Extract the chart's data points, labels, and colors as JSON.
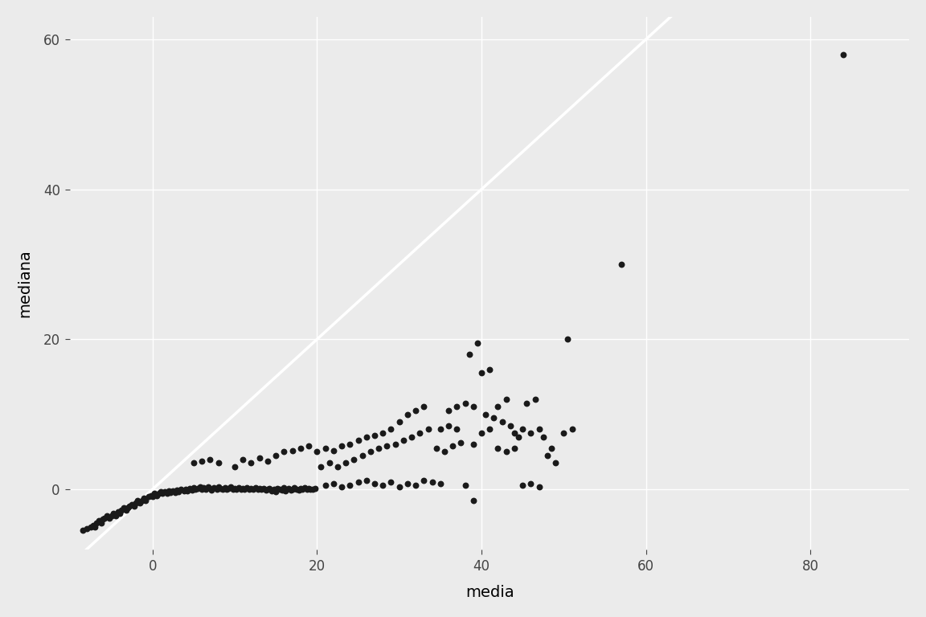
{
  "title": "",
  "xlabel": "media",
  "ylabel": "mediana",
  "background_color": "#EBEBEB",
  "grid_color": "#FFFFFF",
  "line_color": "#FFFFFF",
  "point_color": "#1A1A1A",
  "xlim": [
    -10,
    92
  ],
  "ylim": [
    -8,
    63
  ],
  "xticks": [
    0,
    20,
    40,
    60,
    80
  ],
  "yticks": [
    0,
    20,
    40,
    60
  ],
  "points": [
    [
      -8.5,
      -5.5
    ],
    [
      -8.0,
      -5.2
    ],
    [
      -7.5,
      -5.0
    ],
    [
      -7.2,
      -4.8
    ],
    [
      -7.0,
      -5.0
    ],
    [
      -6.8,
      -4.5
    ],
    [
      -6.5,
      -4.2
    ],
    [
      -6.2,
      -4.5
    ],
    [
      -6.0,
      -4.0
    ],
    [
      -5.8,
      -3.8
    ],
    [
      -5.5,
      -3.5
    ],
    [
      -5.2,
      -3.8
    ],
    [
      -5.0,
      -3.5
    ],
    [
      -4.8,
      -3.2
    ],
    [
      -4.5,
      -3.5
    ],
    [
      -4.2,
      -3.0
    ],
    [
      -4.0,
      -3.2
    ],
    [
      -3.8,
      -2.8
    ],
    [
      -3.5,
      -2.5
    ],
    [
      -3.2,
      -2.8
    ],
    [
      -3.0,
      -2.5
    ],
    [
      -2.8,
      -2.2
    ],
    [
      -2.5,
      -2.0
    ],
    [
      -2.2,
      -2.2
    ],
    [
      -2.0,
      -1.8
    ],
    [
      -1.8,
      -1.5
    ],
    [
      -1.5,
      -1.8
    ],
    [
      -1.2,
      -1.5
    ],
    [
      -1.0,
      -1.2
    ],
    [
      -0.8,
      -1.5
    ],
    [
      -0.5,
      -1.0
    ],
    [
      -0.2,
      -0.8
    ],
    [
      0.0,
      -1.0
    ],
    [
      0.2,
      -0.5
    ],
    [
      0.5,
      -0.8
    ],
    [
      0.8,
      -0.5
    ],
    [
      1.0,
      -0.3
    ],
    [
      1.2,
      -0.5
    ],
    [
      1.5,
      -0.3
    ],
    [
      1.8,
      -0.5
    ],
    [
      2.0,
      -0.2
    ],
    [
      2.2,
      -0.4
    ],
    [
      2.5,
      -0.2
    ],
    [
      2.8,
      -0.4
    ],
    [
      3.0,
      -0.1
    ],
    [
      3.2,
      -0.3
    ],
    [
      3.5,
      0.0
    ],
    [
      3.8,
      -0.2
    ],
    [
      4.0,
      0.0
    ],
    [
      4.2,
      -0.2
    ],
    [
      4.5,
      0.1
    ],
    [
      4.8,
      -0.1
    ],
    [
      5.0,
      0.2
    ],
    [
      5.2,
      0.0
    ],
    [
      5.5,
      0.1
    ],
    [
      5.8,
      0.3
    ],
    [
      6.0,
      0.0
    ],
    [
      6.2,
      0.2
    ],
    [
      6.5,
      0.0
    ],
    [
      6.8,
      0.3
    ],
    [
      7.0,
      0.1
    ],
    [
      7.2,
      -0.1
    ],
    [
      7.5,
      0.2
    ],
    [
      7.8,
      0.0
    ],
    [
      8.0,
      0.3
    ],
    [
      8.2,
      0.1
    ],
    [
      8.5,
      0.0
    ],
    [
      8.8,
      0.2
    ],
    [
      9.0,
      0.0
    ],
    [
      9.2,
      0.1
    ],
    [
      9.5,
      0.3
    ],
    [
      9.8,
      0.0
    ],
    [
      10.0,
      0.1
    ],
    [
      10.2,
      0.0
    ],
    [
      10.5,
      0.2
    ],
    [
      10.8,
      0.0
    ],
    [
      11.0,
      0.1
    ],
    [
      11.2,
      0.0
    ],
    [
      11.5,
      0.2
    ],
    [
      11.8,
      0.0
    ],
    [
      12.0,
      0.1
    ],
    [
      12.2,
      0.0
    ],
    [
      12.5,
      0.2
    ],
    [
      12.8,
      0.0
    ],
    [
      13.0,
      0.1
    ],
    [
      13.2,
      0.0
    ],
    [
      13.5,
      0.1
    ],
    [
      13.8,
      -0.1
    ],
    [
      14.0,
      0.0
    ],
    [
      14.2,
      0.1
    ],
    [
      14.5,
      -0.2
    ],
    [
      14.8,
      0.0
    ],
    [
      15.0,
      -0.3
    ],
    [
      15.2,
      0.1
    ],
    [
      15.5,
      0.0
    ],
    [
      15.8,
      -0.1
    ],
    [
      16.0,
      0.2
    ],
    [
      16.2,
      -0.2
    ],
    [
      16.5,
      0.1
    ],
    [
      16.8,
      -0.1
    ],
    [
      17.0,
      0.0
    ],
    [
      17.2,
      0.2
    ],
    [
      17.5,
      0.0
    ],
    [
      17.8,
      -0.1
    ],
    [
      18.0,
      0.1
    ],
    [
      18.2,
      0.0
    ],
    [
      18.5,
      0.2
    ],
    [
      18.8,
      0.0
    ],
    [
      19.0,
      0.1
    ],
    [
      19.2,
      0.0
    ],
    [
      19.5,
      0.0
    ],
    [
      19.8,
      0.1
    ],
    [
      5.0,
      3.5
    ],
    [
      6.0,
      3.8
    ],
    [
      7.0,
      4.0
    ],
    [
      8.0,
      3.5
    ],
    [
      10.0,
      3.0
    ],
    [
      11.0,
      4.0
    ],
    [
      12.0,
      3.5
    ],
    [
      13.0,
      4.2
    ],
    [
      14.0,
      3.8
    ],
    [
      15.0,
      4.5
    ],
    [
      16.0,
      5.0
    ],
    [
      17.0,
      5.2
    ],
    [
      18.0,
      5.5
    ],
    [
      19.0,
      5.8
    ],
    [
      20.0,
      5.0
    ],
    [
      21.0,
      5.5
    ],
    [
      22.0,
      5.2
    ],
    [
      23.0,
      5.8
    ],
    [
      24.0,
      6.0
    ],
    [
      25.0,
      6.5
    ],
    [
      26.0,
      7.0
    ],
    [
      27.0,
      7.2
    ],
    [
      28.0,
      7.5
    ],
    [
      29.0,
      8.0
    ],
    [
      30.0,
      9.0
    ],
    [
      31.0,
      10.0
    ],
    [
      32.0,
      10.5
    ],
    [
      33.0,
      11.0
    ],
    [
      20.5,
      3.0
    ],
    [
      21.5,
      3.5
    ],
    [
      22.5,
      3.0
    ],
    [
      23.5,
      3.5
    ],
    [
      24.5,
      4.0
    ],
    [
      25.5,
      4.5
    ],
    [
      26.5,
      5.0
    ],
    [
      27.5,
      5.5
    ],
    [
      28.5,
      5.8
    ],
    [
      29.5,
      6.0
    ],
    [
      30.5,
      6.5
    ],
    [
      31.5,
      7.0
    ],
    [
      32.5,
      7.5
    ],
    [
      33.5,
      8.0
    ],
    [
      21.0,
      0.5
    ],
    [
      22.0,
      0.8
    ],
    [
      23.0,
      0.3
    ],
    [
      24.0,
      0.5
    ],
    [
      25.0,
      1.0
    ],
    [
      26.0,
      1.2
    ],
    [
      27.0,
      0.8
    ],
    [
      28.0,
      0.5
    ],
    [
      29.0,
      1.0
    ],
    [
      30.0,
      0.3
    ],
    [
      31.0,
      0.8
    ],
    [
      32.0,
      0.5
    ],
    [
      33.0,
      1.2
    ],
    [
      34.0,
      1.0
    ],
    [
      35.0,
      0.8
    ],
    [
      34.5,
      5.5
    ],
    [
      35.5,
      5.0
    ],
    [
      36.5,
      5.8
    ],
    [
      37.5,
      6.2
    ],
    [
      36.0,
      10.5
    ],
    [
      37.0,
      11.0
    ],
    [
      38.0,
      11.5
    ],
    [
      39.0,
      11.0
    ],
    [
      35.0,
      8.0
    ],
    [
      36.0,
      8.5
    ],
    [
      37.0,
      8.0
    ],
    [
      38.5,
      18.0
    ],
    [
      39.5,
      19.5
    ],
    [
      39.0,
      6.0
    ],
    [
      40.0,
      7.5
    ],
    [
      41.0,
      8.0
    ],
    [
      38.0,
      0.5
    ],
    [
      39.0,
      -1.5
    ],
    [
      40.5,
      10.0
    ],
    [
      41.5,
      9.5
    ],
    [
      42.5,
      9.0
    ],
    [
      40.0,
      15.5
    ],
    [
      41.0,
      16.0
    ],
    [
      42.0,
      11.0
    ],
    [
      43.0,
      12.0
    ],
    [
      43.5,
      8.5
    ],
    [
      44.0,
      7.5
    ],
    [
      45.0,
      8.0
    ],
    [
      44.5,
      7.0
    ],
    [
      45.5,
      11.5
    ],
    [
      46.5,
      12.0
    ],
    [
      46.0,
      7.5
    ],
    [
      47.0,
      8.0
    ],
    [
      47.5,
      7.0
    ],
    [
      48.5,
      5.5
    ],
    [
      42.0,
      5.5
    ],
    [
      43.0,
      5.0
    ],
    [
      44.0,
      5.5
    ],
    [
      45.0,
      0.5
    ],
    [
      46.0,
      0.8
    ],
    [
      47.0,
      0.3
    ],
    [
      48.0,
      4.5
    ],
    [
      49.0,
      3.5
    ],
    [
      50.0,
      7.5
    ],
    [
      51.0,
      8.0
    ],
    [
      50.5,
      20.0
    ],
    [
      57.0,
      30.0
    ],
    [
      84.0,
      58.0
    ]
  ]
}
